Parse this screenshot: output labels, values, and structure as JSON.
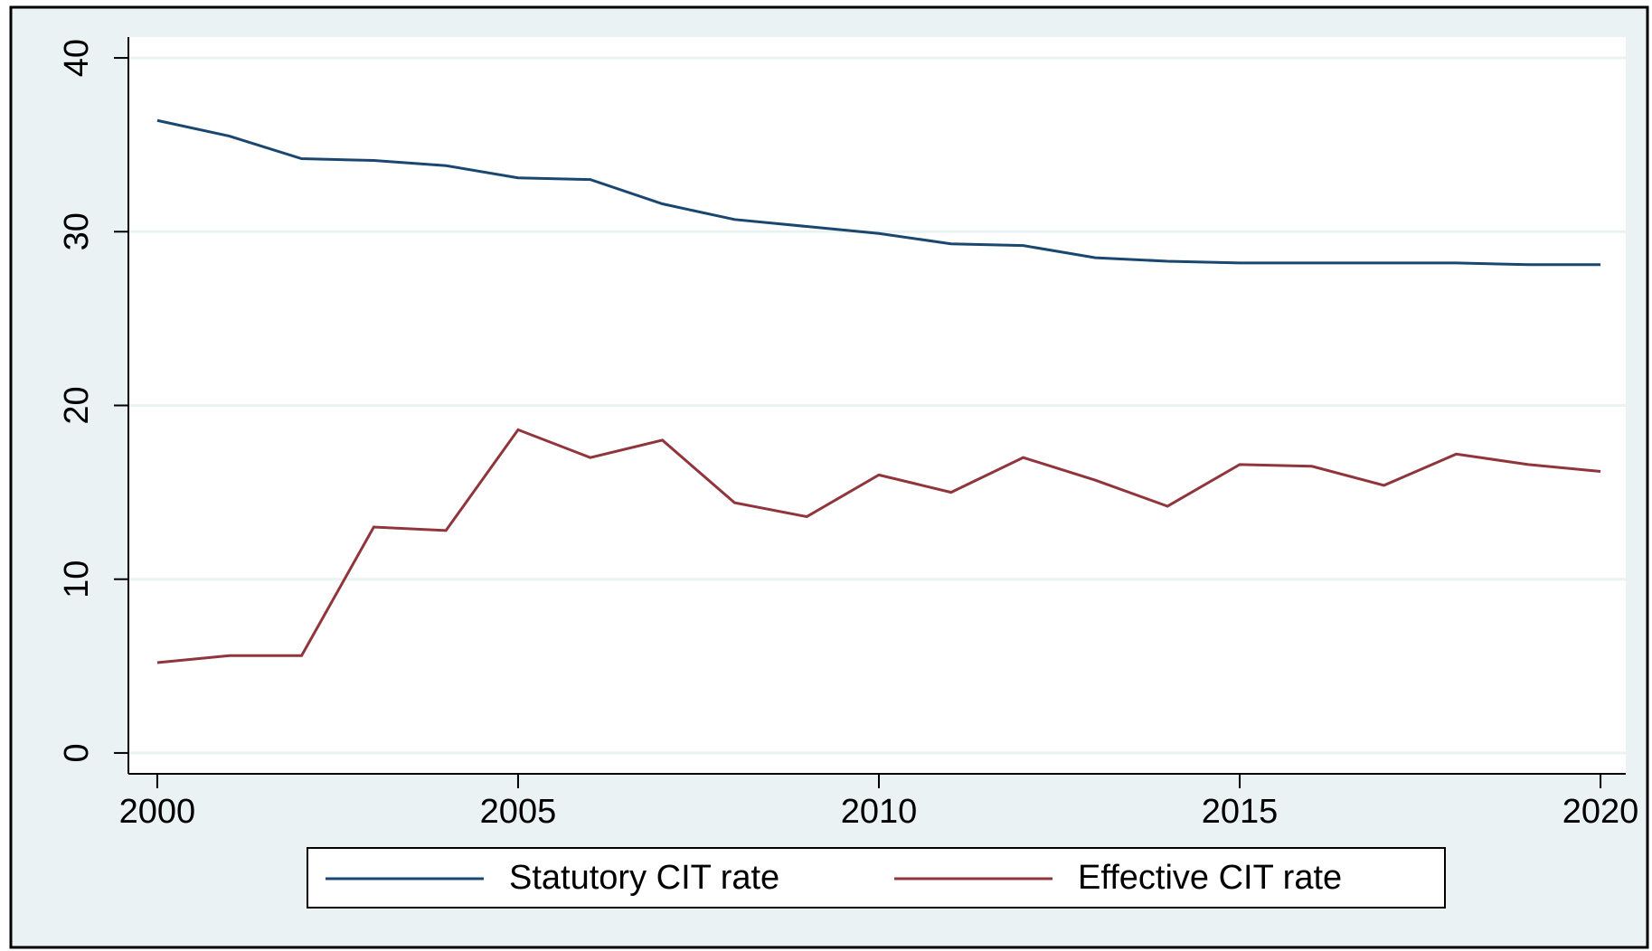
{
  "chart_data": {
    "type": "line",
    "x": [
      2000,
      2001,
      2002,
      2003,
      2004,
      2005,
      2006,
      2007,
      2008,
      2009,
      2010,
      2011,
      2012,
      2013,
      2014,
      2015,
      2016,
      2017,
      2018,
      2019,
      2020
    ],
    "series": [
      {
        "name": "Statutory CIT rate",
        "color": "#1a476f",
        "values": [
          36.4,
          35.5,
          34.2,
          34.1,
          33.8,
          33.1,
          33.0,
          31.6,
          30.7,
          30.3,
          29.9,
          29.3,
          29.2,
          28.5,
          28.3,
          28.2,
          28.2,
          28.2,
          28.2,
          28.1,
          28.1
        ]
      },
      {
        "name": "Effective CIT rate",
        "color": "#90353b",
        "values": [
          5.2,
          5.6,
          5.6,
          13.0,
          12.8,
          18.6,
          17.0,
          18.0,
          14.4,
          13.6,
          16.0,
          15.0,
          17.0,
          15.7,
          14.2,
          16.6,
          16.5,
          15.4,
          17.2,
          16.6,
          16.2
        ]
      }
    ],
    "xlim": [
      1999.6,
      2020.35
    ],
    "xticks": [
      2000,
      2005,
      2010,
      2015,
      2020
    ],
    "ylim": [
      -1.2,
      41.2
    ],
    "yticks": [
      0,
      10,
      20,
      30,
      40
    ],
    "grid": true,
    "legend": "bottom"
  }
}
